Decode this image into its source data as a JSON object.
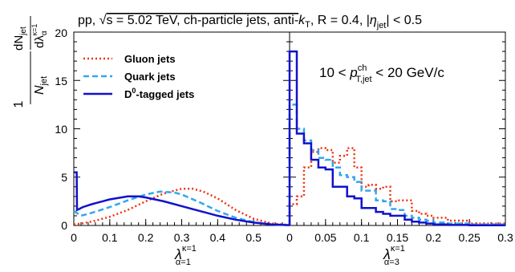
{
  "chart_data": {
    "type": "line",
    "title": "pp, √s = 5.02 TeV, ch-particle jets, anti-kT, R = 0.4, |ηjet| < 0.5",
    "title_parts": {
      "prefix": "pp, ",
      "sqrt": "√",
      "s_energy": "s = 5.02 TeV, ch-particle jets, anti-",
      "k": "k",
      "k_sub": "T",
      "r_part": ", R = 0.4, |",
      "eta": "η",
      "eta_sub": "jet",
      "suffix": "| < 0.5"
    },
    "ylabel": {
      "one": "1",
      "n": "N",
      "n_sub": "jet",
      "dn": "dN",
      "dn_sub": "jet",
      "dl": "dλ",
      "dl_sub": "α",
      "dl_sup": "κ=1"
    },
    "annotation": {
      "prefix": "10 < ",
      "p": "p",
      "p_sup": "ch",
      "p_sub": "T,jet",
      "suffix": " < 20 GeV/c"
    },
    "legend": {
      "position": "top-left",
      "entries": [
        {
          "label": "Gluon jets",
          "color": "#ee3311",
          "style": "dotted"
        },
        {
          "label": "Quark jets",
          "color": "#33a6ee",
          "style": "dashed"
        },
        {
          "label": "D",
          "label_sup": "0",
          "label_rest": "-tagged jets",
          "color": "#1111cc",
          "style": "solid"
        }
      ]
    },
    "ylim": [
      0,
      20
    ],
    "yticks": [
      "0",
      "5",
      "10",
      "15",
      "20"
    ],
    "panels": [
      {
        "xlabel": {
          "lambda": "λ",
          "sup": "κ=1",
          "sub": "α=1"
        },
        "xlim": [
          0,
          0.6
        ],
        "xticks": [
          "0",
          "0.1",
          "0.2",
          "0.3",
          "0.4",
          "0.5"
        ],
        "xtick_values": [
          0,
          0.1,
          0.2,
          0.3,
          0.4,
          0.5
        ],
        "histogram": false,
        "series": [
          {
            "name": "Gluon jets",
            "x": [
              0,
              0.02,
              0.05,
              0.1,
              0.15,
              0.2,
              0.25,
              0.3,
              0.33,
              0.36,
              0.4,
              0.45,
              0.5,
              0.55,
              0.6
            ],
            "y": [
              0.1,
              0.2,
              0.4,
              0.9,
              1.6,
              2.5,
              3.3,
              3.8,
              3.8,
              3.5,
              2.8,
              1.6,
              0.7,
              0.2,
              0.05
            ]
          },
          {
            "name": "Quark jets",
            "x": [
              0,
              0.02,
              0.05,
              0.1,
              0.15,
              0.2,
              0.24,
              0.28,
              0.3,
              0.35,
              0.4,
              0.45,
              0.5,
              0.55,
              0.6
            ],
            "y": [
              1.5,
              1.0,
              1.3,
              1.9,
              2.6,
              3.2,
              3.5,
              3.4,
              3.2,
              2.4,
              1.5,
              0.8,
              0.35,
              0.1,
              0.03
            ]
          },
          {
            "name": "D0-tagged jets",
            "x": [
              0,
              0.008,
              0.009,
              0.015,
              0.025,
              0.05,
              0.1,
              0.15,
              0.18,
              0.2,
              0.25,
              0.3,
              0.35,
              0.4,
              0.45,
              0.5,
              0.55,
              0.6
            ],
            "y": [
              5.5,
              5.5,
              1.6,
              1.7,
              1.9,
              2.2,
              2.7,
              3.0,
              3.0,
              2.9,
              2.5,
              2.0,
              1.5,
              1.0,
              0.6,
              0.3,
              0.1,
              0.03
            ]
          }
        ]
      },
      {
        "xlabel": {
          "lambda": "λ",
          "sup": "κ=1",
          "sub": "α=3"
        },
        "xlim": [
          0,
          0.3
        ],
        "xticks": [
          "0",
          "0.05",
          "0.1",
          "0.15",
          "0.2",
          "0.25",
          "0.3"
        ],
        "xtick_values": [
          0,
          0.05,
          0.1,
          0.15,
          0.2,
          0.25,
          0.3
        ],
        "histogram": true,
        "edges": [
          0,
          0.01,
          0.02,
          0.03,
          0.04,
          0.05,
          0.06,
          0.07,
          0.08,
          0.09,
          0.1,
          0.11,
          0.12,
          0.13,
          0.14,
          0.15,
          0.16,
          0.17,
          0.18,
          0.19,
          0.2,
          0.22,
          0.25,
          0.3
        ],
        "series": [
          {
            "name": "Gluon jets",
            "values": [
              2.2,
              3.0,
              6.0,
              7.6,
              8.0,
              7.8,
              6.5,
              7.2,
              8.0,
              6.0,
              4.0,
              4.2,
              3.8,
              4.0,
              2.5,
              2.6,
              2.6,
              1.5,
              1.2,
              1.0,
              0.8,
              0.5,
              0.2
            ]
          },
          {
            "name": "Quark jets",
            "values": [
              12.5,
              10.0,
              8.8,
              7.8,
              7.0,
              6.8,
              6.0,
              5.2,
              5.0,
              4.5,
              3.6,
              3.6,
              2.6,
              2.5,
              1.7,
              1.6,
              1.0,
              0.8,
              0.6,
              0.5,
              0.3,
              0.2,
              0.1
            ]
          },
          {
            "name": "D0-tagged jets",
            "values": [
              18.0,
              9.5,
              8.5,
              6.8,
              6.0,
              5.8,
              4.0,
              4.0,
              3.0,
              2.8,
              1.8,
              1.8,
              1.4,
              1.2,
              1.0,
              1.0,
              0.6,
              0.4,
              0.3,
              0.2,
              0.1,
              0.05,
              0.02
            ]
          }
        ]
      }
    ]
  }
}
